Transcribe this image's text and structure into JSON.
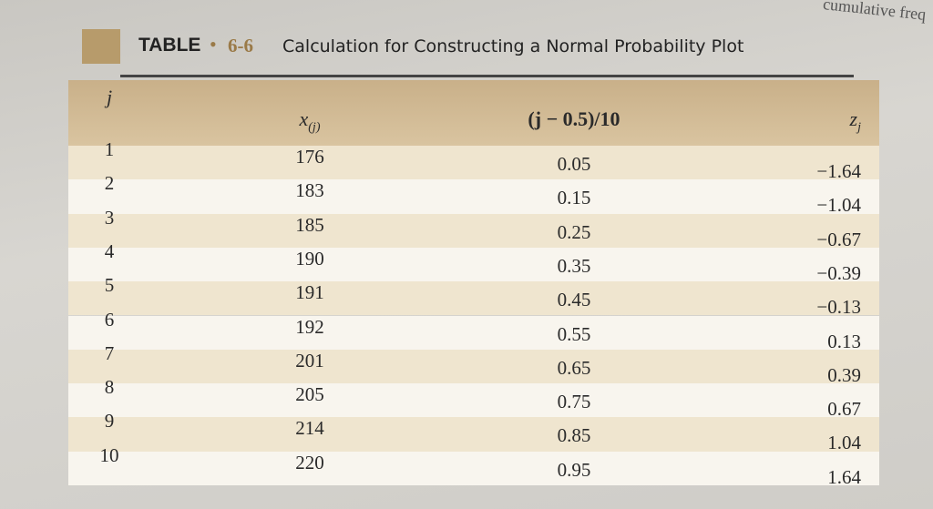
{
  "margin_text": "cumulative freq",
  "header": {
    "label": "TABLE",
    "number": "6-6",
    "title": "Calculation for Constructing a Normal Probability Plot"
  },
  "table": {
    "columns": [
      {
        "base": "j"
      },
      {
        "base": "x",
        "sub": "(j)"
      },
      {
        "base": "(j − 0.5)/10"
      },
      {
        "base": "z",
        "sub": "j"
      }
    ],
    "rows": [
      [
        "1",
        "176",
        "0.05",
        "−1.64"
      ],
      [
        "2",
        "183",
        "0.15",
        "−1.04"
      ],
      [
        "3",
        "185",
        "0.25",
        "−0.67"
      ],
      [
        "4",
        "190",
        "0.35",
        "−0.39"
      ],
      [
        "5",
        "191",
        "0.45",
        "−0.13"
      ],
      [
        "6",
        "192",
        "0.55",
        "0.13"
      ],
      [
        "7",
        "201",
        "0.65",
        "0.39"
      ],
      [
        "8",
        "205",
        "0.75",
        "0.67"
      ],
      [
        "9",
        "214",
        "0.85",
        "1.04"
      ],
      [
        "10",
        "220",
        "0.95",
        "1.64"
      ]
    ]
  }
}
